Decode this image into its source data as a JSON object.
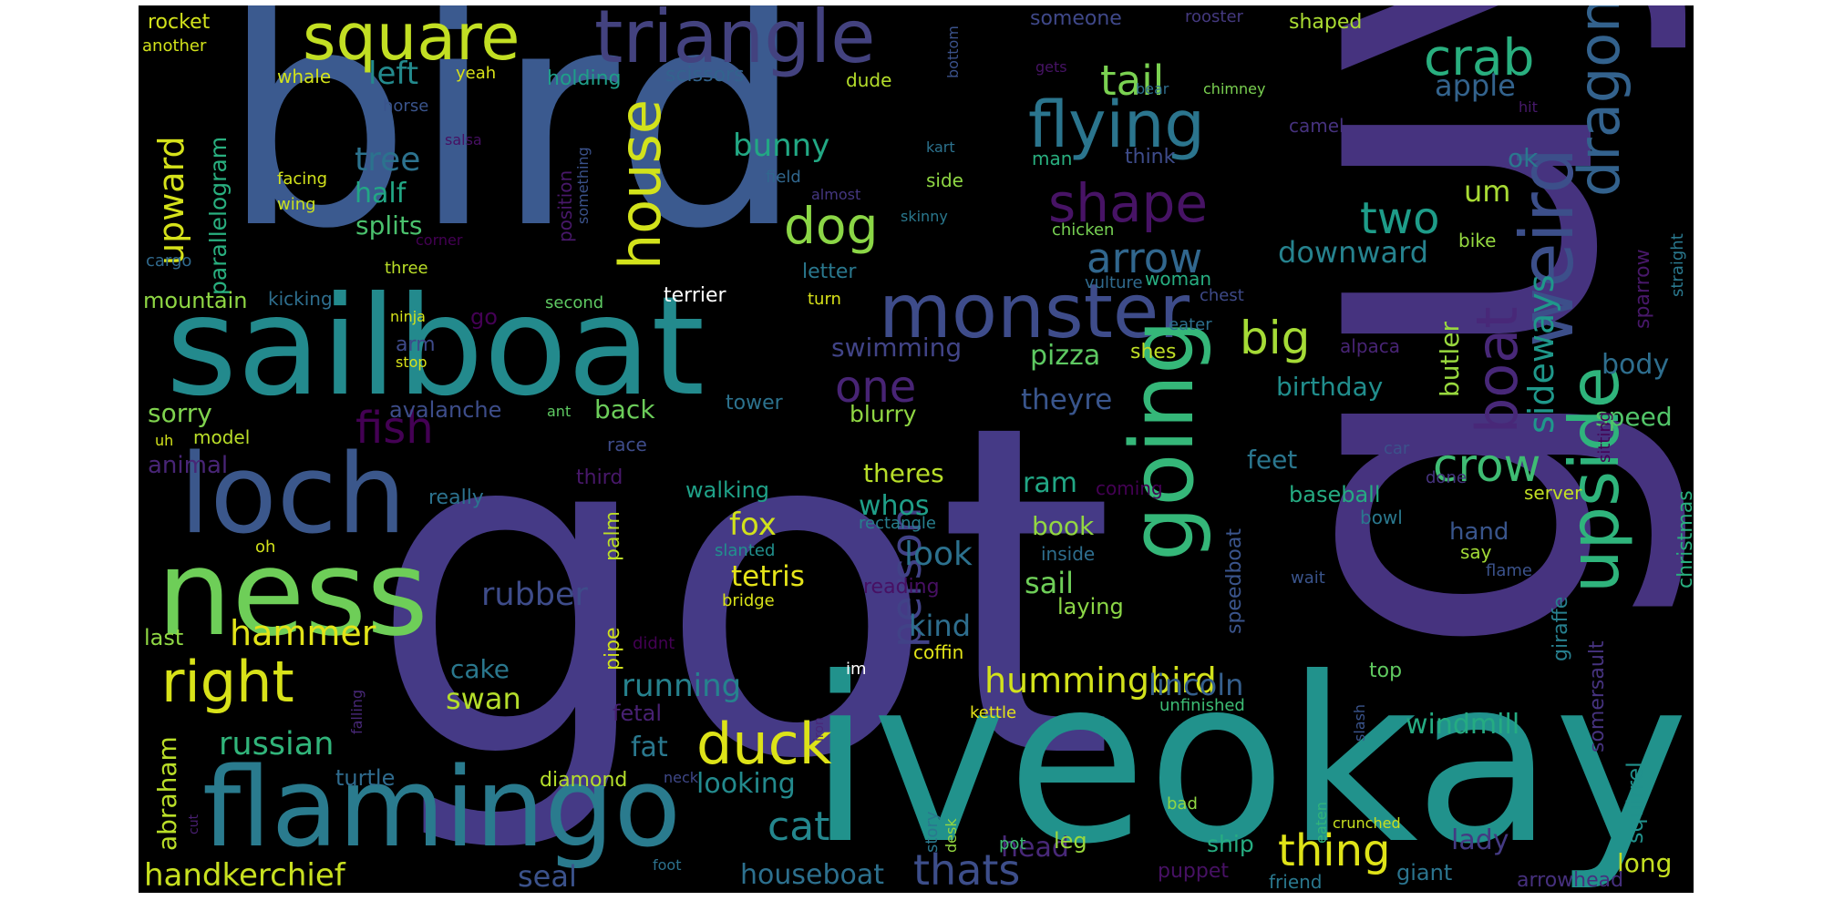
{
  "words": [
    {
      "text": "bird",
      "color": "#3b5a8f"
    },
    {
      "text": "got",
      "color": "#453a86"
    },
    {
      "text": "guy",
      "color": "#46337f"
    },
    {
      "text": "sailboat",
      "color": "#238a8d"
    },
    {
      "text": "iveokay",
      "color": "#21928c"
    },
    {
      "text": "flamingo",
      "color": "#2a7b8e"
    },
    {
      "text": "loch",
      "color": "#3b578b"
    },
    {
      "text": "ness",
      "color": "#6ece58"
    },
    {
      "text": "triangle",
      "color": "#43427f"
    },
    {
      "text": "square",
      "color": "#c2df23"
    },
    {
      "text": "monster",
      "color": "#3e4c8a"
    },
    {
      "text": "flying",
      "color": "#2b758e"
    },
    {
      "text": "house",
      "color": "#d2e21b"
    },
    {
      "text": "going",
      "color": "#35b779"
    },
    {
      "text": "weird",
      "color": "#3c4f8a"
    },
    {
      "text": "boat",
      "color": "#482878"
    },
    {
      "text": "dragon",
      "color": "#33628d"
    },
    {
      "text": "upside",
      "color": "#2fb47c"
    },
    {
      "text": "shape",
      "color": "#471365"
    },
    {
      "text": "right",
      "color": "#d8e219"
    },
    {
      "text": "duck",
      "color": "#dde318"
    },
    {
      "text": "crab",
      "color": "#29af7f"
    },
    {
      "text": "tail",
      "color": "#7ad151"
    },
    {
      "text": "dog",
      "color": "#8bd646"
    },
    {
      "text": "fish",
      "color": "#440154"
    },
    {
      "text": "big",
      "color": "#a5db36"
    },
    {
      "text": "crow",
      "color": "#3fbc73"
    },
    {
      "text": "two",
      "color": "#1e9c89"
    },
    {
      "text": "arrow",
      "color": "#31678e"
    },
    {
      "text": "one",
      "color": "#482475"
    },
    {
      "text": "person",
      "color": "#414287"
    },
    {
      "text": "thing",
      "color": "#dfe318"
    },
    {
      "text": "thats",
      "color": "#3d4e8a"
    },
    {
      "text": "cat",
      "color": "#24878e"
    },
    {
      "text": "hummingbird",
      "color": "#d2e21b"
    },
    {
      "text": "handkerchief",
      "color": "#c8e020"
    },
    {
      "text": "russian",
      "color": "#31b57b"
    },
    {
      "text": "hammer",
      "color": "#e2e418"
    },
    {
      "text": "sideways",
      "color": "#1f988b"
    },
    {
      "text": "upward",
      "color": "#d5e21a"
    },
    {
      "text": "downward",
      "color": "#26828e"
    },
    {
      "text": "running",
      "color": "#26828e"
    },
    {
      "text": "rubber",
      "color": "#3e4c8a"
    },
    {
      "text": "houseboat",
      "color": "#2d708e"
    },
    {
      "text": "lincoln",
      "color": "#355f8d"
    },
    {
      "text": "fox",
      "color": "#d2e21b"
    },
    {
      "text": "tetris",
      "color": "#e5e419"
    },
    {
      "text": "sail",
      "color": "#6ece58"
    },
    {
      "text": "look",
      "color": "#2c718e"
    },
    {
      "text": "swan",
      "color": "#b5de2b"
    },
    {
      "text": "cake",
      "color": "#2a788e"
    },
    {
      "text": "pizza",
      "color": "#5ec962"
    },
    {
      "text": "swimming",
      "color": "#414487"
    },
    {
      "text": "bunny",
      "color": "#22a884"
    },
    {
      "text": "tree",
      "color": "#2c728e"
    },
    {
      "text": "half",
      "color": "#22a785"
    },
    {
      "text": "splits",
      "color": "#4ac16d"
    },
    {
      "text": "left",
      "color": "#238a8d"
    },
    {
      "text": "head",
      "color": "#482878"
    },
    {
      "text": "lady",
      "color": "#443a83"
    },
    {
      "text": "seal",
      "color": "#3b528b"
    },
    {
      "text": "fat",
      "color": "#2a788e"
    },
    {
      "text": "looking",
      "color": "#238a8d"
    },
    {
      "text": "windmill",
      "color": "#25ab82"
    },
    {
      "text": "apple",
      "color": "#33638d"
    },
    {
      "text": "um",
      "color": "#a8db34"
    },
    {
      "text": "ok",
      "color": "#2a788e"
    },
    {
      "text": "kind",
      "color": "#2e6e8e"
    },
    {
      "text": "whos",
      "color": "#1f9f88"
    },
    {
      "text": "ram",
      "color": "#22a785"
    },
    {
      "text": "theres",
      "color": "#b8de29"
    },
    {
      "text": "theyre",
      "color": "#39558c"
    },
    {
      "text": "birthday",
      "color": "#218e8d"
    },
    {
      "text": "butler",
      "color": "#98d83e"
    },
    {
      "text": "body",
      "color": "#2e6e8e"
    },
    {
      "text": "speed",
      "color": "#52c569"
    },
    {
      "text": "feet",
      "color": "#2a768e"
    },
    {
      "text": "book",
      "color": "#93d741"
    },
    {
      "text": "long",
      "color": "#c5e021"
    },
    {
      "text": "leg",
      "color": "#9bd93c"
    },
    {
      "text": "abraham",
      "color": "#bade28"
    },
    {
      "text": "parallelogram",
      "color": "#29af7f"
    },
    {
      "text": "sorry",
      "color": "#7fd34e"
    },
    {
      "text": "animal",
      "color": "#482576"
    },
    {
      "text": "back",
      "color": "#6ccd5a"
    },
    {
      "text": "baseball",
      "color": "#25ab82"
    },
    {
      "text": "christmas",
      "color": "#29af7f"
    },
    {
      "text": "squirrel",
      "color": "#21918c"
    },
    {
      "text": "sparrow",
      "color": "#48186a"
    },
    {
      "text": "giraffe",
      "color": "#277f8e"
    },
    {
      "text": "somersault",
      "color": "#46337f"
    },
    {
      "text": "speedboat",
      "color": "#3a548c"
    },
    {
      "text": "hand",
      "color": "#39558c"
    },
    {
      "text": "laying",
      "color": "#8bd646"
    },
    {
      "text": "blurry",
      "color": "#90d743"
    },
    {
      "text": "avalanche",
      "color": "#3d4d8a"
    },
    {
      "text": "mountain",
      "color": "#8fd744"
    },
    {
      "text": "last",
      "color": "#8fd744"
    },
    {
      "text": "turtle",
      "color": "#2f6b8e"
    },
    {
      "text": "diamond",
      "color": "#b5de2b"
    },
    {
      "text": "ship",
      "color": "#26ad81"
    },
    {
      "text": "puppet",
      "color": "#471164"
    },
    {
      "text": "arrowhead",
      "color": "#46307e"
    },
    {
      "text": "giant",
      "color": "#2b748e"
    },
    {
      "text": "friend",
      "color": "#2a788e"
    },
    {
      "text": "top",
      "color": "#60ca60"
    },
    {
      "text": "unfinished",
      "color": "#3dbc74"
    },
    {
      "text": "fetal",
      "color": "#482173"
    },
    {
      "text": "pipe",
      "color": "#d2e21b"
    },
    {
      "text": "palm",
      "color": "#bddf26"
    },
    {
      "text": "walking",
      "color": "#1fa188"
    },
    {
      "text": "reading",
      "color": "#471063"
    },
    {
      "text": "rectangle",
      "color": "#277f8e"
    },
    {
      "text": "coffin",
      "color": "#e2e418"
    },
    {
      "text": "kettle",
      "color": "#e5e419"
    },
    {
      "text": "story",
      "color": "#2a788e"
    },
    {
      "text": "desk",
      "color": "#95d840"
    },
    {
      "text": "im",
      "color": "#ffffff"
    },
    {
      "text": "didnt",
      "color": "#440154"
    },
    {
      "text": "bridge",
      "color": "#d8e219"
    },
    {
      "text": "slanted",
      "color": "#21908d"
    },
    {
      "text": "inside",
      "color": "#2e6e8e"
    },
    {
      "text": "say",
      "color": "#a2da37"
    },
    {
      "text": "bowl",
      "color": "#2a788e"
    },
    {
      "text": "done",
      "color": "#46337f"
    },
    {
      "text": "car",
      "color": "#3b528b"
    },
    {
      "text": "server",
      "color": "#c2df23"
    },
    {
      "text": "wait",
      "color": "#3a548c"
    },
    {
      "text": "flame",
      "color": "#3b528b"
    },
    {
      "text": "sitting",
      "color": "#440154"
    },
    {
      "text": "straight",
      "color": "#2a788e"
    },
    {
      "text": "bike",
      "color": "#95d840"
    },
    {
      "text": "chicken",
      "color": "#77d153"
    },
    {
      "text": "vulture",
      "color": "#306a8e"
    },
    {
      "text": "woman",
      "color": "#27ad81"
    },
    {
      "text": "chest",
      "color": "#3e4a89"
    },
    {
      "text": "eater",
      "color": "#2d708e"
    },
    {
      "text": "shes",
      "color": "#c0df25"
    },
    {
      "text": "alpaca",
      "color": "#482475"
    },
    {
      "text": "camel",
      "color": "#46327e"
    },
    {
      "text": "man",
      "color": "#29af7f"
    },
    {
      "text": "think",
      "color": "#3e4c8a"
    },
    {
      "text": "chimney",
      "color": "#7ad151"
    },
    {
      "text": "bear",
      "color": "#2e6e8e"
    },
    {
      "text": "hit",
      "color": "#481a6c"
    },
    {
      "text": "someone",
      "color": "#3f4889"
    },
    {
      "text": "rooster",
      "color": "#44397f"
    },
    {
      "text": "shaped",
      "color": "#aadc32"
    },
    {
      "text": "gets",
      "color": "#471365"
    },
    {
      "text": "bottom",
      "color": "#3b528b"
    },
    {
      "text": "kart",
      "color": "#2c728e"
    },
    {
      "text": "almost",
      "color": "#453781"
    },
    {
      "text": "skinny",
      "color": "#2a788e"
    },
    {
      "text": "field",
      "color": "#31678e"
    },
    {
      "text": "side",
      "color": "#8fd744"
    },
    {
      "text": "dude",
      "color": "#b5de2b"
    },
    {
      "text": "scissors",
      "color": "#33638d"
    },
    {
      "text": "holding",
      "color": "#1f9e89"
    },
    {
      "text": "position",
      "color": "#48186a"
    },
    {
      "text": "something",
      "color": "#3b528b"
    },
    {
      "text": "horse",
      "color": "#3a548c"
    },
    {
      "text": "yeah",
      "color": "#d8e219"
    },
    {
      "text": "whale",
      "color": "#d2e21b"
    },
    {
      "text": "rocket",
      "color": "#d2e21b"
    },
    {
      "text": "another",
      "color": "#d2e21b"
    },
    {
      "text": "salsa",
      "color": "#471063"
    },
    {
      "text": "facing",
      "color": "#d2e21b"
    },
    {
      "text": "wing",
      "color": "#c8e020"
    },
    {
      "text": "corner",
      "color": "#440154"
    },
    {
      "text": "three",
      "color": "#bade28"
    },
    {
      "text": "cargo",
      "color": "#306a8e"
    },
    {
      "text": "kicking",
      "color": "#2e6e8e"
    },
    {
      "text": "ninja",
      "color": "#d5e21a"
    },
    {
      "text": "second",
      "color": "#5ec962"
    },
    {
      "text": "go",
      "color": "#440154"
    },
    {
      "text": "letter",
      "color": "#2a788e"
    },
    {
      "text": "terrier",
      "color": "#ffffff"
    },
    {
      "text": "turn",
      "color": "#d8e219"
    },
    {
      "text": "arm",
      "color": "#3e4a89"
    },
    {
      "text": "stop",
      "color": "#d8e219"
    },
    {
      "text": "ant",
      "color": "#5ec962"
    },
    {
      "text": "tower",
      "color": "#2c728e"
    },
    {
      "text": "race",
      "color": "#3e4c8a"
    },
    {
      "text": "third",
      "color": "#48186a"
    },
    {
      "text": "really",
      "color": "#2c728e"
    },
    {
      "text": "model",
      "color": "#bade28"
    },
    {
      "text": "uh",
      "color": "#d2e21b"
    },
    {
      "text": "oh",
      "color": "#d2e21b"
    },
    {
      "text": "falling",
      "color": "#482878"
    },
    {
      "text": "cut",
      "color": "#481f70"
    },
    {
      "text": "neck",
      "color": "#3f4889"
    },
    {
      "text": "foot",
      "color": "#2c728e"
    },
    {
      "text": "bad",
      "color": "#90d743"
    },
    {
      "text": "pot",
      "color": "#3fbc73"
    },
    {
      "text": "eaten",
      "color": "#31b57b"
    },
    {
      "text": "crunched",
      "color": "#c8e020"
    },
    {
      "text": "iron",
      "color": "#482878"
    },
    {
      "text": "slash",
      "color": "#3a548c"
    },
    {
      "text": "coming",
      "color": "#440154"
    }
  ]
}
